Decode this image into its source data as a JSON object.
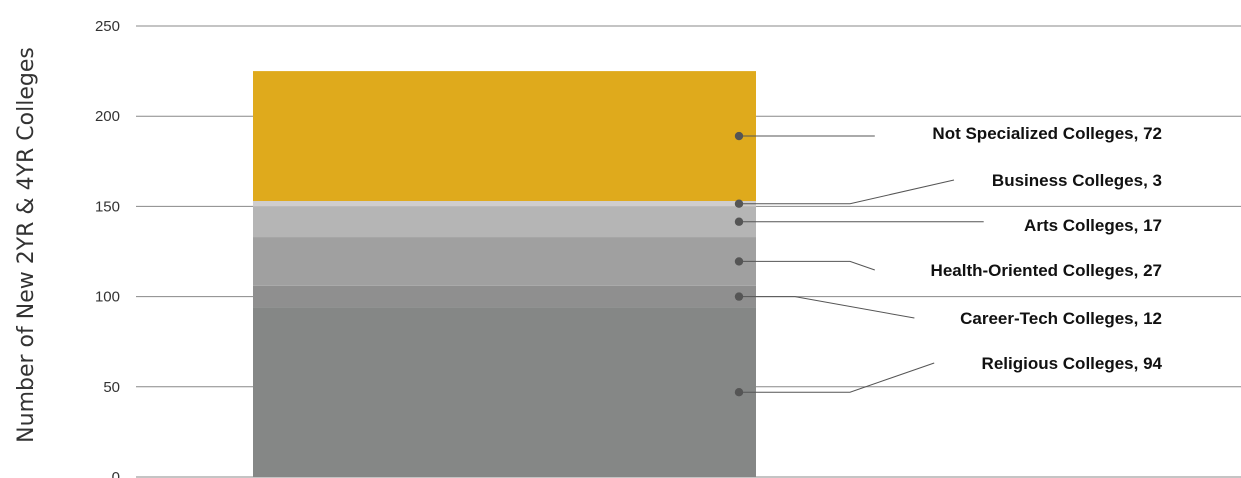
{
  "chart_data": {
    "type": "bar",
    "stacked": true,
    "categories": [
      ""
    ],
    "ylabel": "Number of New 2YR & 4YR Colleges",
    "ylim": [
      0,
      250
    ],
    "yticks": [
      0,
      50,
      100,
      150,
      200,
      250
    ],
    "grid": true,
    "series": [
      {
        "name": "Religious Colleges",
        "values": [
          94
        ],
        "color": "#858786",
        "label": "Religious Colleges, 94"
      },
      {
        "name": "Career-Tech Colleges",
        "values": [
          12
        ],
        "color": "#8f8f8f",
        "label": "Career-Tech Colleges, 12"
      },
      {
        "name": "Health-Oriented Colleges",
        "values": [
          27
        ],
        "color": "#a0a0a0",
        "label": "Health-Oriented Colleges, 27"
      },
      {
        "name": "Arts Colleges",
        "values": [
          17
        ],
        "color": "#b5b5b5",
        "label": "Arts Colleges, 17"
      },
      {
        "name": "Business Colleges",
        "values": [
          3
        ],
        "color": "#cfcdcd",
        "label": "Business Colleges, 3"
      },
      {
        "name": "Not Specialized Colleges",
        "values": [
          72
        ],
        "color": "#dfaa1c",
        "label": "Not Specialized Colleges, 72"
      }
    ]
  }
}
